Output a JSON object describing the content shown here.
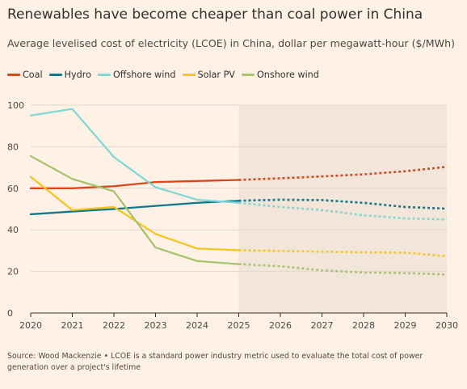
{
  "title": "Renewables have become cheaper than coal power in China",
  "subtitle": "Average levelised cost of electricity (LCOE) in China, dollar per megawatt-hour ($/MWh)",
  "source": "Source: Wood Mackenzie • LCOE is a standard power industry metric used to evaluate the total cost of power generation over a project's lifetime",
  "colors": {
    "background": "#fff1e5",
    "forecast_shade": "#f2e5d9",
    "grid": "#e2d6cc",
    "axis": "#33302e"
  },
  "chart_data": {
    "type": "line",
    "title": "Renewables have become cheaper than coal power in China",
    "ylabel": "",
    "xlabel": "",
    "x": [
      2020,
      2021,
      2022,
      2023,
      2024,
      2025,
      2026,
      2027,
      2028,
      2029,
      2030
    ],
    "xlim": [
      2020,
      2030
    ],
    "ylim": [
      0,
      100
    ],
    "yticks": [
      0,
      20,
      40,
      60,
      80,
      100
    ],
    "xticks": [
      2020,
      2021,
      2022,
      2023,
      2024,
      2025,
      2026,
      2027,
      2028,
      2029,
      2030
    ],
    "forecast_start": 2025,
    "grid": true,
    "legend_position": "top-left",
    "series": [
      {
        "name": "Coal",
        "color": "#d9471b",
        "values": [
          60,
          60,
          61,
          63,
          63.5,
          64,
          64.8,
          65.7,
          66.7,
          68.2,
          70.3
        ]
      },
      {
        "name": "Hydro",
        "color": "#0f7a8a",
        "values": [
          47.5,
          48.8,
          50,
          51.5,
          53,
          54,
          54.5,
          54.3,
          53,
          51,
          50.2
        ]
      },
      {
        "name": "Offshore wind",
        "color": "#7fd8d5",
        "values": [
          95,
          98.2,
          75,
          60.5,
          54.5,
          53,
          51,
          49.5,
          47,
          45.5,
          45
        ]
      },
      {
        "name": "Solar PV",
        "color": "#f6c61a",
        "values": [
          65.5,
          49.5,
          51,
          38,
          31,
          30.2,
          29.8,
          29.5,
          29.2,
          29,
          27.3
        ]
      },
      {
        "name": "Onshore wind",
        "color": "#a8c46c",
        "values": [
          75.5,
          64.5,
          58.5,
          31.5,
          25,
          23.5,
          22.5,
          20.5,
          19.5,
          19.2,
          18.5
        ]
      }
    ]
  }
}
